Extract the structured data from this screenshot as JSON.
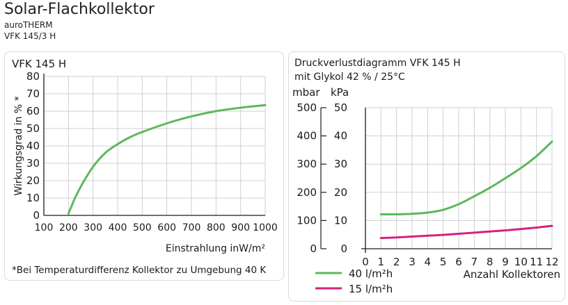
{
  "header": {
    "title": "Solar-Flachkollektor",
    "line1": "auroTHERM",
    "line2": "VFK 145/3 H"
  },
  "colors": {
    "green": "#5cb85c",
    "magenta": "#d6207e",
    "axis": "#1a1a1a",
    "grid": "#cfcfcf"
  },
  "chart_data": [
    {
      "type": "line",
      "title": "VFK 145 H",
      "xlabel": "Einstrahlung inW/m²",
      "ylabel": "Wirkungsgrad in % *",
      "xlim": [
        100,
        1000
      ],
      "ylim": [
        0,
        80
      ],
      "x_ticks": [
        100,
        200,
        300,
        400,
        500,
        600,
        700,
        800,
        900,
        1000
      ],
      "y_ticks": [
        0,
        10,
        20,
        30,
        40,
        50,
        60,
        70,
        80
      ],
      "grid": true,
      "footnote": "*Bei Temperaturdifferenz Kollektor zu Umgebung 40 K",
      "series": [
        {
          "color": "#5cb85c",
          "x": [
            200,
            230,
            260,
            300,
            350,
            400,
            450,
            500,
            600,
            700,
            800,
            900,
            1000
          ],
          "y": [
            1,
            11,
            19,
            28,
            36,
            41,
            45,
            48,
            53,
            57,
            60,
            62,
            63.5
          ]
        }
      ]
    },
    {
      "type": "line",
      "title": "Druckverlustdiagramm VFK 145 H",
      "subtitle": "mit Glykol 42 % / 25°C",
      "ylabel_left": "mbar",
      "ylabel_right": "kPa",
      "xlabel": "Anzahl Kollektoren",
      "xlim": [
        0,
        12
      ],
      "ylim": [
        0,
        500
      ],
      "ylim_kpa": [
        0,
        50
      ],
      "x_ticks": [
        0,
        1,
        2,
        3,
        4,
        5,
        6,
        7,
        8,
        9,
        10,
        11,
        12
      ],
      "y_ticks": [
        0,
        100,
        200,
        300,
        400,
        500
      ],
      "y_ticks_kpa": [
        0,
        10,
        20,
        30,
        40,
        50
      ],
      "grid": true,
      "legend_position": "bottom-left",
      "series": [
        {
          "name": "40 l/m²h",
          "color": "#5cb85c",
          "x": [
            1,
            2,
            3,
            4,
            5,
            6,
            7,
            8,
            9,
            10,
            11,
            12
          ],
          "y": [
            122,
            122,
            124,
            128,
            138,
            158,
            186,
            216,
            250,
            286,
            328,
            380
          ]
        },
        {
          "name": "15 l/m²h",
          "color": "#d6207e",
          "x": [
            1,
            2,
            3,
            4,
            5,
            6,
            7,
            8,
            9,
            10,
            11,
            12
          ],
          "y": [
            38,
            40,
            43,
            46,
            49,
            53,
            57,
            61,
            65,
            70,
            75,
            81
          ]
        }
      ]
    }
  ]
}
